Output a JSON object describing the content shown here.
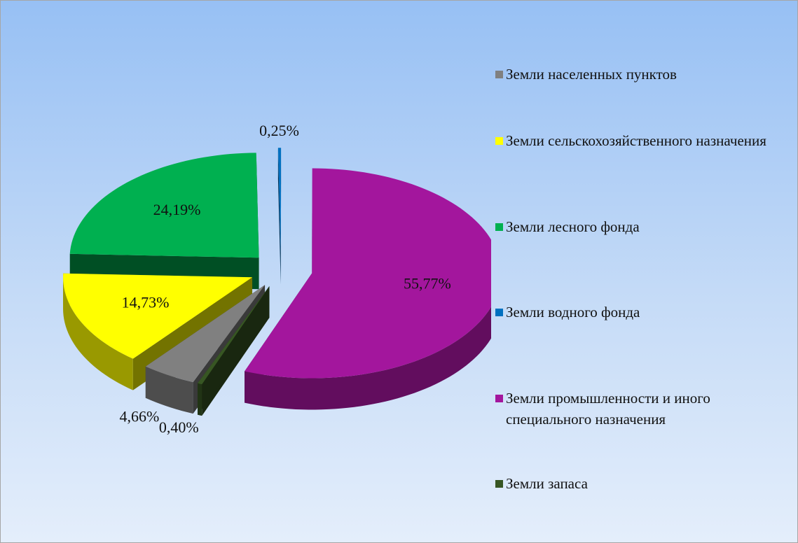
{
  "chart_data": {
    "type": "pie",
    "categories": [
      "Земли населенных пунктов",
      "Земли сельскохозяйственного назначения",
      "Земли лесного фонда",
      "Земли водного фонда",
      "Земли промышленности и иного специального назначения",
      "Земли запаса"
    ],
    "values": [
      4.66,
      14.73,
      24.19,
      0.25,
      55.77,
      0.4
    ],
    "value_labels": [
      "4,66%",
      "14,73%",
      "24,19%",
      "0,25%",
      "55,77%",
      "0,40%"
    ],
    "colors": [
      "#808080",
      "#ffff00",
      "#00b050",
      "#0070c0",
      "#a3169d",
      "#375623"
    ]
  }
}
